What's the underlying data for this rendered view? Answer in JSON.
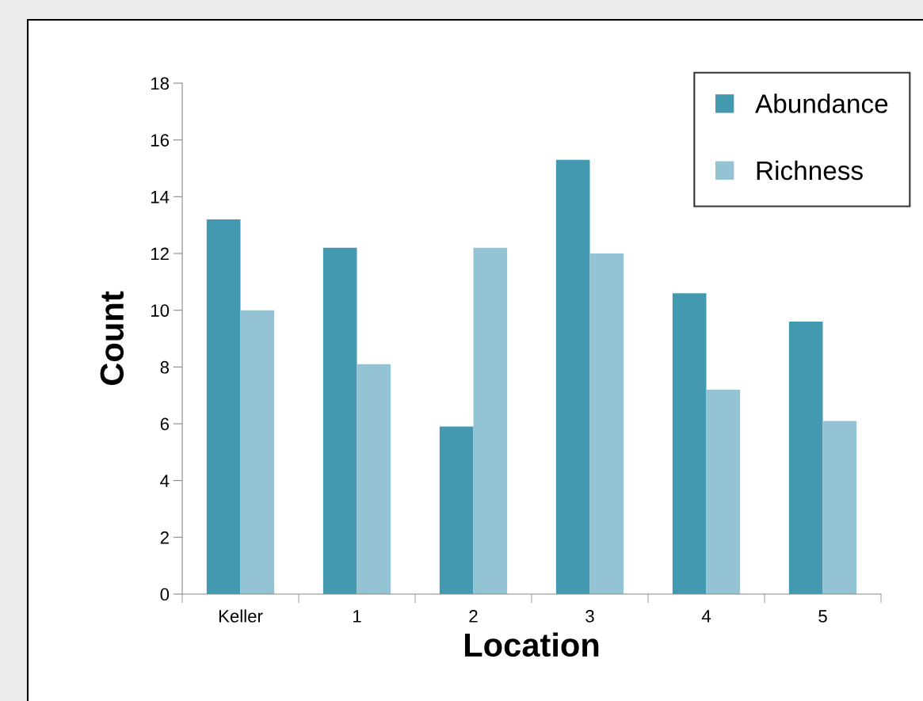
{
  "chart_data": {
    "type": "bar",
    "xlabel": "Location",
    "ylabel": "Count",
    "categories": [
      "Keller",
      "1",
      "2",
      "3",
      "4",
      "5"
    ],
    "series": [
      {
        "name": "Abundance",
        "color": "#4399b0",
        "values": [
          13.2,
          12.2,
          5.9,
          15.3,
          10.6,
          9.6
        ]
      },
      {
        "name": "Richness",
        "color": "#94c3d4",
        "values": [
          10.0,
          8.1,
          12.2,
          12.0,
          7.2,
          6.1
        ]
      }
    ],
    "ylim": [
      0,
      18
    ],
    "yticks": [
      0,
      2,
      4,
      6,
      8,
      10,
      12,
      14,
      16,
      18
    ],
    "grid": false,
    "legend": "top right"
  }
}
